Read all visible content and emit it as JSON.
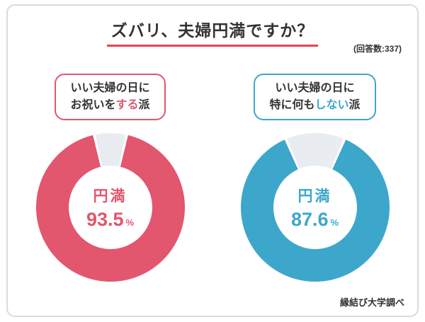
{
  "header": {
    "title": "ズバリ、夫婦円満ですか？",
    "responses": "(回答数:337)"
  },
  "footer": {
    "source": "縁結び大学調べ"
  },
  "colors": {
    "pink": "#e2566e",
    "blue": "#3da7cb",
    "remainder_gray": "#e9edf1",
    "title_underline": "#ea4256",
    "text_dark": "#333333",
    "card_border": "#d7dce1"
  },
  "chart_data": [
    {
      "type": "pie",
      "title": "いい夫婦の日にお祝いをする派",
      "badge": {
        "line1": "いい夫婦の日に",
        "line2_pre": "お祝いを",
        "line2_highlight": "する",
        "line2_post": "派"
      },
      "center_label": "円満",
      "value": 93.5,
      "unit": "%",
      "color": "#e2566e",
      "remainder_color": "#e9edf1",
      "slices": [
        {
          "value": 93.5,
          "color": "#e2566e"
        },
        {
          "value": 6.5,
          "color": "#e9edf1"
        }
      ],
      "legend": "none"
    },
    {
      "type": "pie",
      "title": "いい夫婦の日に特に何もしない派",
      "badge": {
        "line1": "いい夫婦の日に",
        "line2_pre": "特に何も",
        "line2_highlight": "しない",
        "line2_post": "派"
      },
      "center_label": "円満",
      "value": 87.6,
      "unit": "%",
      "color": "#3da7cb",
      "remainder_color": "#e9edf1",
      "slices": [
        {
          "value": 87.6,
          "color": "#3da7cb"
        },
        {
          "value": 12.4,
          "color": "#e9edf1"
        }
      ],
      "legend": "none"
    }
  ]
}
